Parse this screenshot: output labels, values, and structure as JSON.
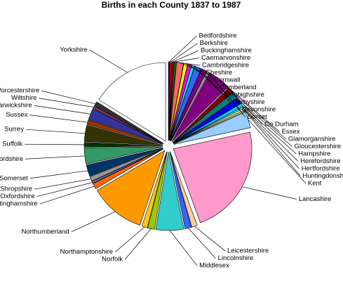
{
  "chart_data": {
    "type": "pie",
    "title": "Births in each County 1837 to 1987",
    "categories": [
      "Bedfordshire",
      "Berkshire",
      "Buckinghamshire",
      "Caernarvonshire",
      "Cambridgeshire",
      "Cheshire",
      "Cornwall",
      "Cumberland",
      "Denbighshire",
      "Derbyshire",
      "Devonshire",
      "Dorset",
      "Co Durham",
      "Essex",
      "Glamorganshire",
      "Gloucestershire",
      "Hampshire",
      "Herefordshire",
      "Hertfordshire",
      "Huntingdonshire",
      "Kent",
      "Lancashire",
      "Leicestershire",
      "Lincolnshire",
      "Middlesex",
      "Norfolk",
      "Northamptonshire",
      "Northumberland",
      "Nottinghamshire",
      "Oxfordshire",
      "Shropshire",
      "Somerset",
      "Staffordshire",
      "Suffolk",
      "Surrey",
      "Sussex",
      "Warwickshire",
      "Wiltshire",
      "Worcestershire",
      "Yorkshire"
    ],
    "values": [
      0.3,
      0.4,
      0.3,
      0.2,
      0.4,
      1.5,
      0.8,
      0.8,
      0.6,
      1.5,
      1.2,
      0.4,
      5,
      1.2,
      1.5,
      1.3,
      0.8,
      0.3,
      0.4,
      0.3,
      3.5,
      24,
      1.2,
      1.4,
      6,
      1.5,
      1.2,
      12,
      1.2,
      0.5,
      1,
      2.5,
      3.5,
      1,
      3.5,
      1,
      2.5,
      0.5,
      1,
      17
    ],
    "colors": [
      "#000080",
      "#ff0000",
      "#800000",
      "#ff00ff",
      "#008000",
      "#ff6666",
      "#ffff00",
      "#ff00ff",
      "#00ffff",
      "#3366ff",
      "#800080",
      "#c0c0c0",
      "#800080",
      "#800000",
      "#008080",
      "#0000ff",
      "#00ccff",
      "#ccffff",
      "#ccffcc",
      "#ffff99",
      "#99ccff",
      "#ff99cc",
      "#ffcc99",
      "#3366ff",
      "#33cccc",
      "#99cc00",
      "#ffcc00",
      "#ff9900",
      "#ff6600",
      "#666699",
      "#969696",
      "#003366",
      "#339966",
      "#003300",
      "#333300",
      "#993300",
      "#333399",
      "#993366",
      "#333333",
      "#ffffff"
    ]
  }
}
